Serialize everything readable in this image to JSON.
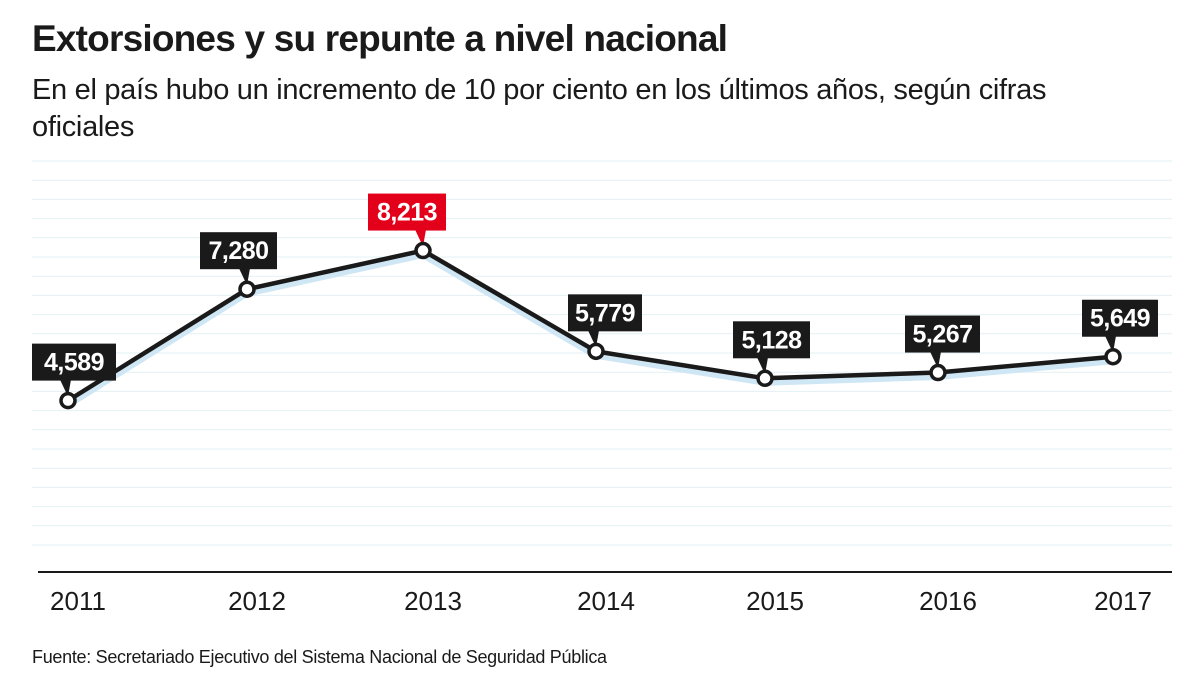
{
  "title": "Extorsiones y su repunte a nivel nacional",
  "subtitle": "En el país hubo un incremento de 10 por ciento en los últimos años, según cifras oficiales",
  "source": "Fuente: Secretariado Ejecutivo del Sistema Nacional de Seguridad Pública",
  "chart_data": {
    "type": "line",
    "title": "Extorsiones y su repunte a nivel nacional",
    "categories": [
      "2011",
      "2012",
      "2013",
      "2014",
      "2015",
      "2016",
      "2017"
    ],
    "values": [
      4589,
      7280,
      8213,
      5779,
      5128,
      5267,
      5649
    ],
    "data_labels": [
      "4,589",
      "7,280",
      "8,213",
      "5,779",
      "5,128",
      "5,267",
      "5,649"
    ],
    "highlight_index": 2,
    "xlabel": "",
    "ylabel": "",
    "ylim": [
      450,
      10400
    ],
    "grid": true,
    "colors": {
      "line": "#1a1a1a",
      "shadow": "#cfe6f4",
      "label_bg": "#1a1a1a",
      "highlight_bg": "#e2001a",
      "grid": "#e3f1f4"
    }
  }
}
